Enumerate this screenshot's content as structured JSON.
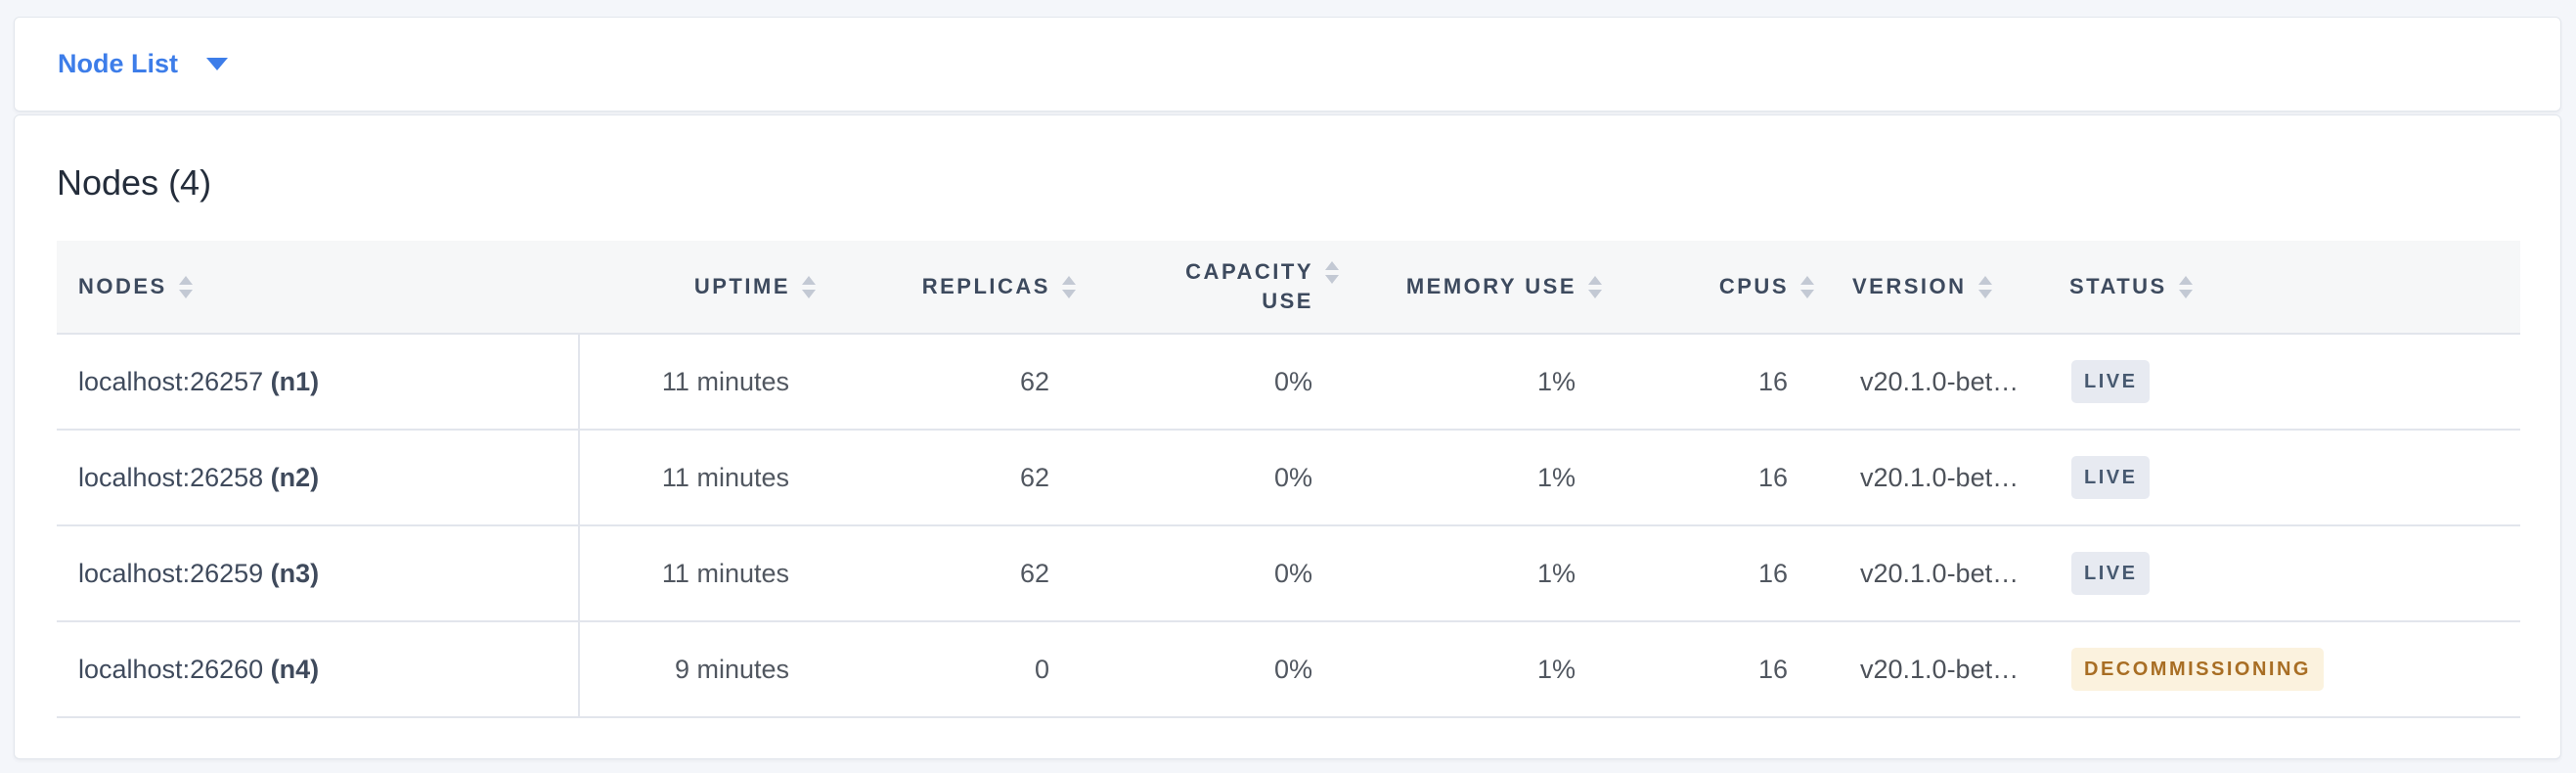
{
  "selector": {
    "label": "Node List"
  },
  "main": {
    "title": "Nodes (4)"
  },
  "table": {
    "columns": [
      {
        "id": "nodes",
        "label": "NODES",
        "align": "left"
      },
      {
        "id": "uptime",
        "label": "UPTIME",
        "align": "right"
      },
      {
        "id": "replicas",
        "label": "REPLICAS",
        "align": "right"
      },
      {
        "id": "capacity_use",
        "label": "CAPACITY USE",
        "align": "right"
      },
      {
        "id": "memory_use",
        "label": "MEMORY USE",
        "align": "right"
      },
      {
        "id": "cpus",
        "label": "CPUS",
        "align": "right"
      },
      {
        "id": "version",
        "label": "VERSION",
        "align": "left"
      },
      {
        "id": "status",
        "label": "STATUS",
        "align": "left"
      }
    ],
    "rows": [
      {
        "node_address": "localhost:26257",
        "node_id": "(n1)",
        "uptime": "11 minutes",
        "replicas": "62",
        "capacity_use": "0%",
        "memory_use": "1%",
        "cpus": "16",
        "version": "v20.1.0-bet…",
        "status": {
          "label": "LIVE",
          "type": "live"
        }
      },
      {
        "node_address": "localhost:26258",
        "node_id": "(n2)",
        "uptime": "11 minutes",
        "replicas": "62",
        "capacity_use": "0%",
        "memory_use": "1%",
        "cpus": "16",
        "version": "v20.1.0-bet…",
        "status": {
          "label": "LIVE",
          "type": "live"
        }
      },
      {
        "node_address": "localhost:26259",
        "node_id": "(n3)",
        "uptime": "11 minutes",
        "replicas": "62",
        "capacity_use": "0%",
        "memory_use": "1%",
        "cpus": "16",
        "version": "v20.1.0-bet…",
        "status": {
          "label": "LIVE",
          "type": "live"
        }
      },
      {
        "node_address": "localhost:26260",
        "node_id": "(n4)",
        "uptime": "9 minutes",
        "replicas": "0",
        "capacity_use": "0%",
        "memory_use": "1%",
        "cpus": "16",
        "version": "v20.1.0-bet…",
        "status": {
          "label": "DECOMMISSIONING",
          "type": "decommissioning"
        }
      }
    ]
  },
  "icons": {
    "dropdown_caret": "chevron-down-icon",
    "column_sort": "sort-arrows-icon"
  },
  "colors": {
    "accent_blue": "#3d7de9",
    "page_background": "#f4f6fa",
    "header_text": "#3d4a5e",
    "badge_live_bg": "#e7eaf1",
    "badge_live_text": "#475970",
    "badge_decommissioning_bg": "#fbf2de",
    "badge_decommissioning_text": "#a86e24"
  }
}
